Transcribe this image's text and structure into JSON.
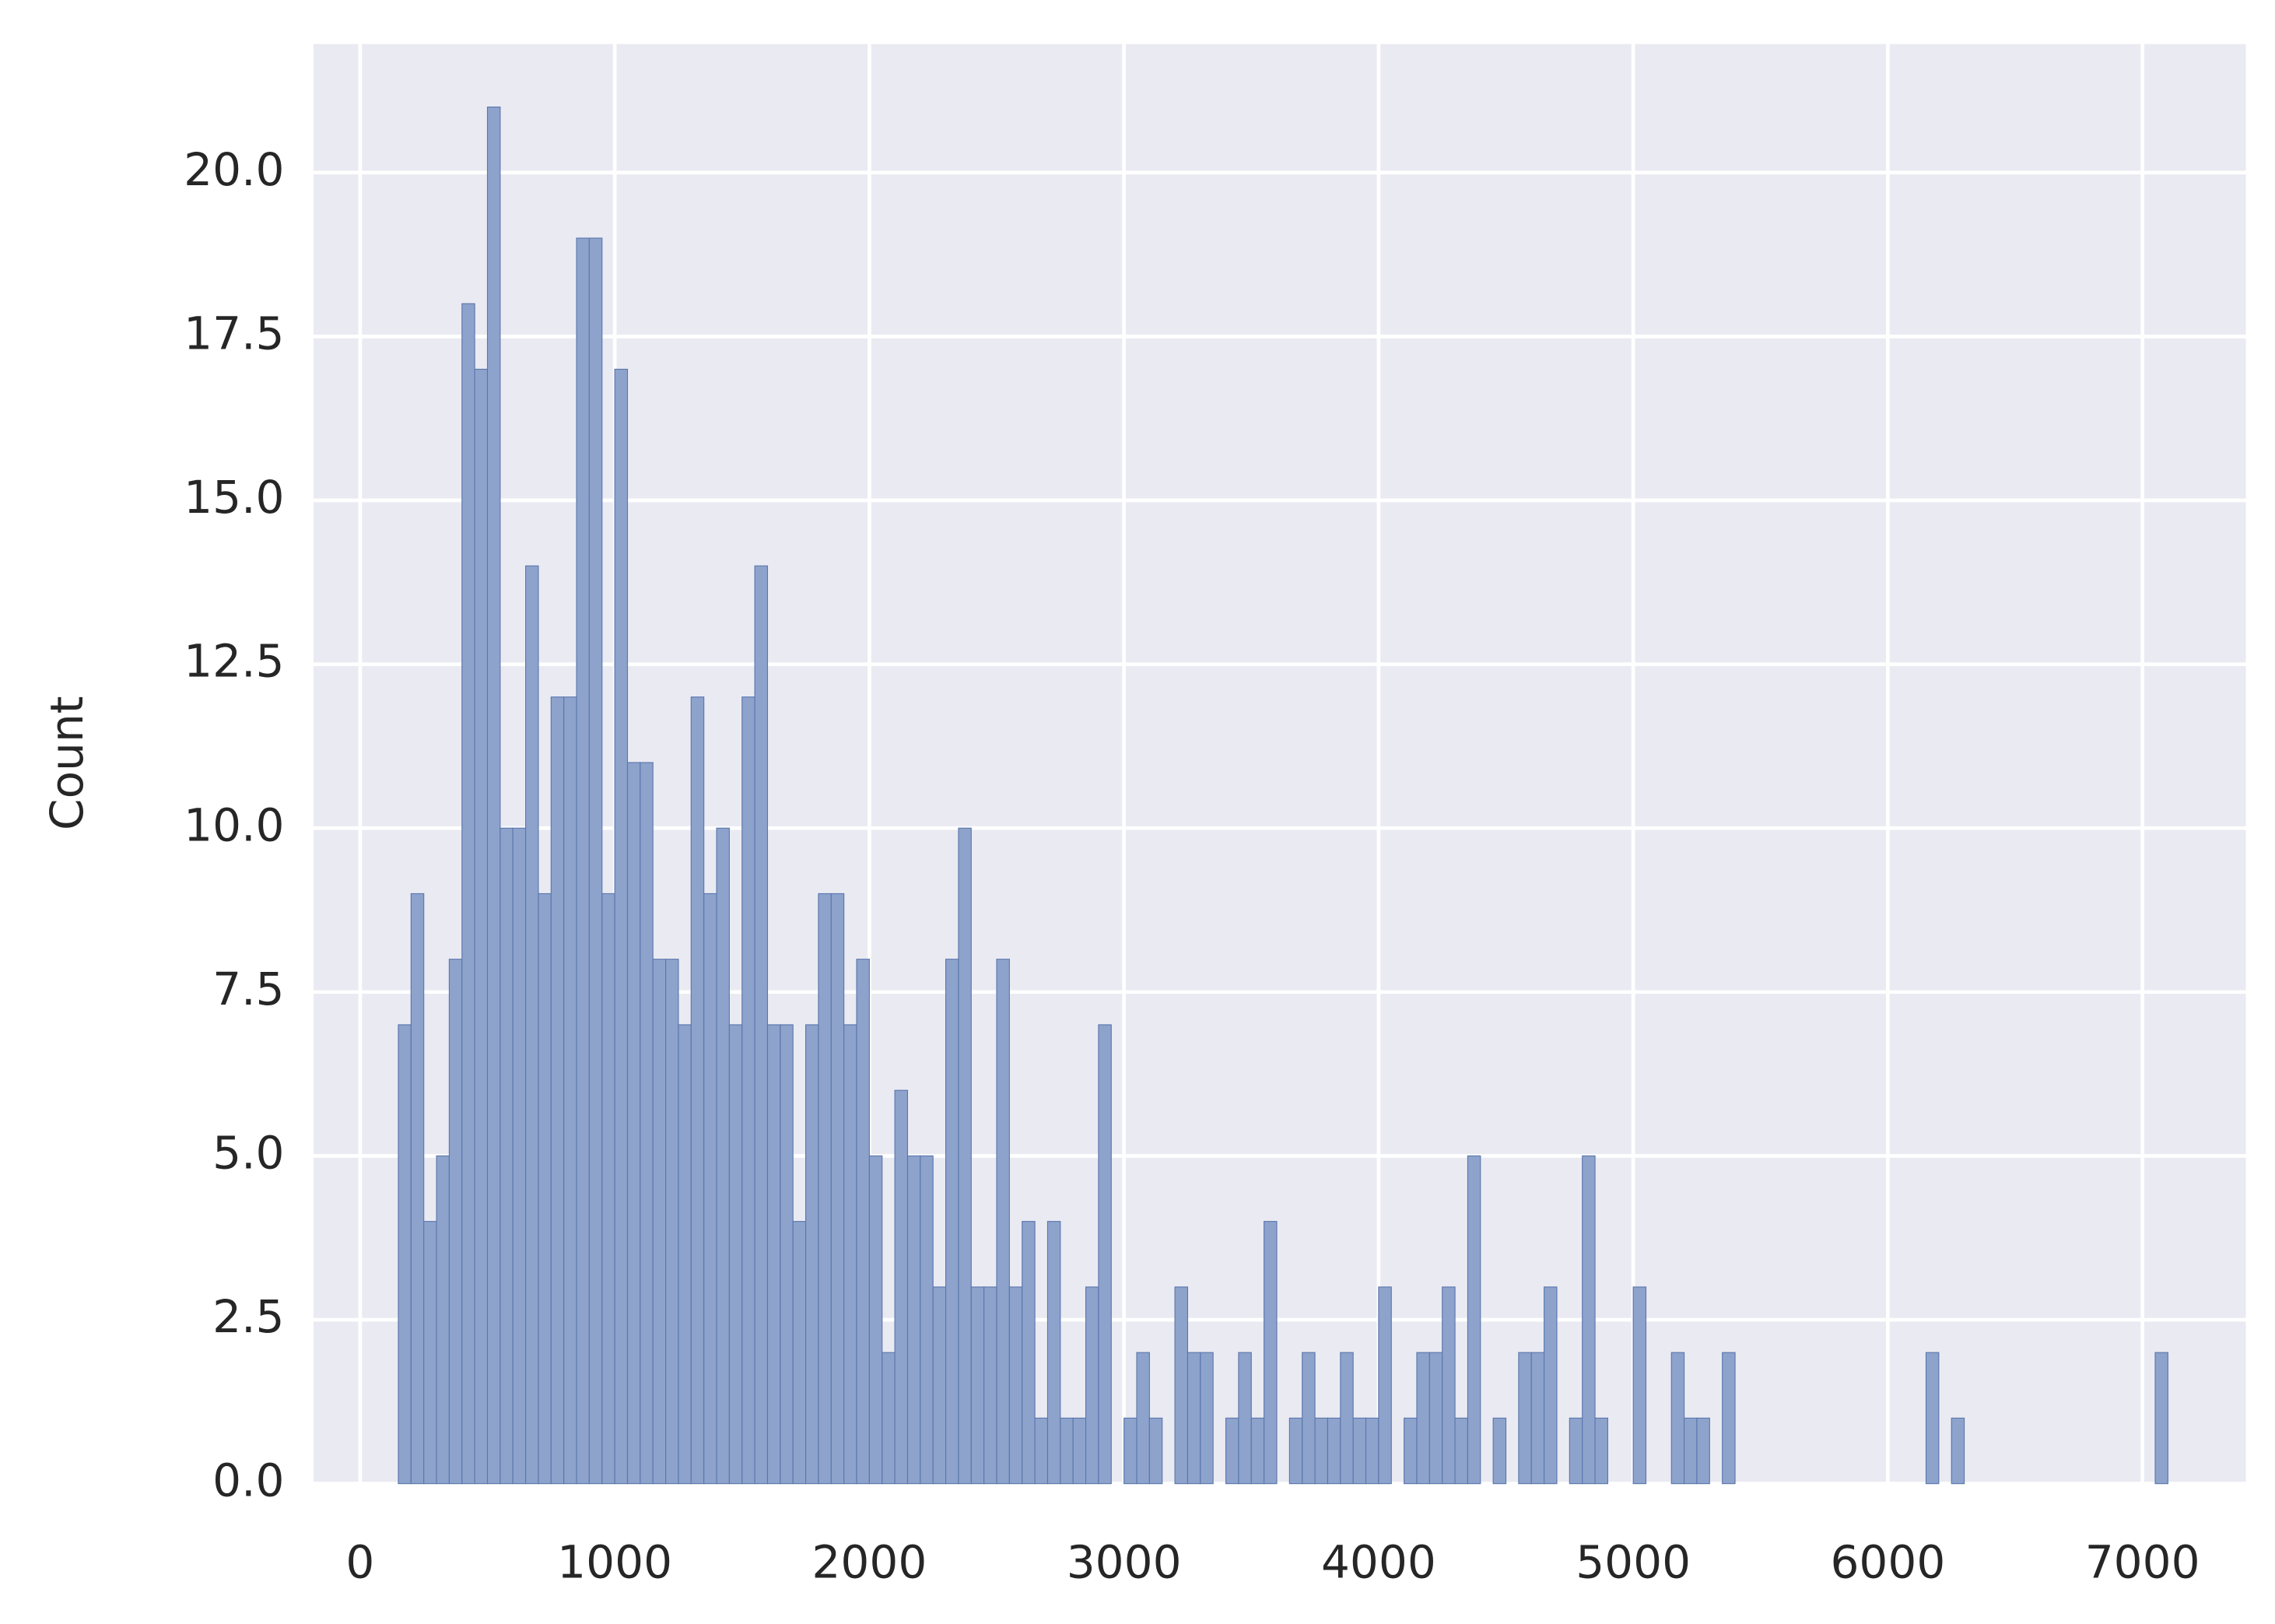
{
  "chart_data": {
    "type": "histogram",
    "ylabel": "Count",
    "bins": [
      150,
      200,
      250,
      300,
      350,
      400,
      450,
      500,
      550,
      600,
      650,
      700,
      750,
      800,
      850,
      900,
      950,
      1000,
      1050,
      1100,
      1150,
      1200,
      1250,
      1300,
      1350,
      1400,
      1450,
      1500,
      1550,
      1600,
      1650,
      1700,
      1750,
      1800,
      1850,
      1900,
      1950,
      2000,
      2050,
      2100,
      2150,
      2200,
      2250,
      2300,
      2350,
      2400,
      2450,
      2500,
      2550,
      2600,
      2650,
      2700,
      2750,
      2800,
      2850,
      2900,
      2950,
      3000,
      3050,
      3100,
      3150,
      3200,
      3250,
      3300,
      3350,
      3400,
      3450,
      3500,
      3550,
      3600,
      3650,
      3700,
      3750,
      3800,
      3850,
      3900,
      3950,
      4000,
      4050,
      4100,
      4150,
      4200,
      4250,
      4300,
      4350,
      4400,
      4450,
      4500,
      4550,
      4600,
      4650,
      4700,
      4750,
      4800,
      4850,
      4900,
      4950,
      5000,
      5050,
      5100,
      5150,
      5200,
      5250,
      5300,
      5350,
      5400,
      5450,
      5500,
      5550,
      5600,
      5650,
      5700,
      5750,
      5800,
      5850,
      5900,
      5950,
      6000,
      6050,
      6100,
      6150,
      6200,
      6250,
      6300,
      6350,
      6400,
      6450,
      6500,
      6550,
      6600,
      6650,
      6700,
      6750,
      6800,
      6850,
      6900,
      6950,
      7000,
      7050,
      7100
    ],
    "values": [
      7,
      9,
      4,
      5,
      8,
      18,
      17,
      21,
      10,
      10,
      14,
      9,
      12,
      12,
      19,
      19,
      9,
      17,
      11,
      11,
      8,
      8,
      7,
      12,
      9,
      10,
      7,
      12,
      14,
      7,
      7,
      4,
      7,
      9,
      9,
      7,
      8,
      5,
      2,
      6,
      5,
      5,
      3,
      8,
      10,
      3,
      3,
      8,
      3,
      4,
      1,
      4,
      1,
      1,
      3,
      7,
      0,
      1,
      2,
      1,
      0,
      3,
      2,
      2,
      0,
      1,
      2,
      1,
      4,
      0,
      1,
      2,
      1,
      1,
      2,
      1,
      1,
      3,
      0,
      1,
      2,
      2,
      3,
      1,
      5,
      0,
      1,
      0,
      2,
      2,
      3,
      0,
      1,
      5,
      1,
      0,
      0,
      3,
      0,
      0,
      2,
      1,
      1,
      0,
      2,
      0,
      0,
      0,
      0,
      0,
      0,
      0,
      0,
      0,
      0,
      0,
      0,
      0,
      0,
      0,
      2,
      0,
      1,
      0,
      0,
      0,
      0,
      0,
      0,
      0,
      0,
      0,
      0,
      0,
      0,
      0,
      0,
      0,
      2
    ],
    "color": "#8da3cc",
    "edgecolor": "#5b76ad",
    "xlim": [
      -183,
      7406
    ],
    "ylim": [
      0,
      21.96
    ],
    "xticks": [
      0,
      1000,
      2000,
      3000,
      4000,
      5000,
      6000,
      7000
    ],
    "yticks": [
      {
        "value": 0,
        "label": "0.0"
      },
      {
        "value": 2.5,
        "label": "2.5"
      },
      {
        "value": 5,
        "label": "5.0"
      },
      {
        "value": 7.5,
        "label": "7.5"
      },
      {
        "value": 10,
        "label": "10.0"
      },
      {
        "value": 12.5,
        "label": "12.5"
      },
      {
        "value": 15,
        "label": "15.0"
      },
      {
        "value": 17.5,
        "label": "17.5"
      },
      {
        "value": 20,
        "label": "20.0"
      }
    ],
    "grid": true
  }
}
